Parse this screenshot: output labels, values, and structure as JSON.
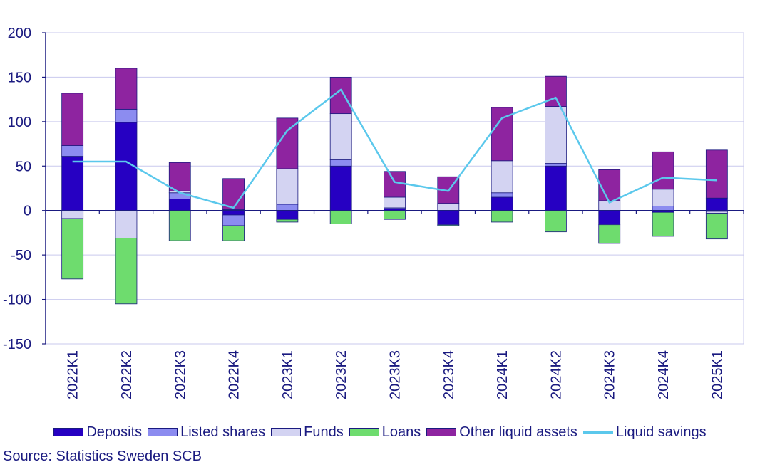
{
  "chart_data": {
    "type": "bar",
    "stacked": true,
    "categories": [
      "2022K1",
      "2022K2",
      "2022K3",
      "2022K4",
      "2023K1",
      "2023K2",
      "2023K3",
      "2023K4",
      "2024K1",
      "2024K2",
      "2024K3",
      "2024K4",
      "2025K1"
    ],
    "ylim": [
      -150,
      200
    ],
    "yticks": [
      200,
      150,
      100,
      50,
      0,
      -50,
      -100,
      -150
    ],
    "ytick_labels": [
      "200",
      "150",
      "100",
      "50",
      "0",
      "-50",
      "-100",
      "-150"
    ],
    "series": [
      {
        "name": "Deposits",
        "color": "#2600c2",
        "values": [
          61,
          99,
          13,
          -5,
          -10,
          50,
          2,
          -15,
          15,
          50,
          -15,
          -2,
          14
        ]
      },
      {
        "name": "Listed shares",
        "color": "#8c8cf0",
        "values": [
          12,
          15,
          7,
          -12,
          7,
          7,
          1,
          -1,
          5,
          3,
          -1,
          5,
          -1
        ]
      },
      {
        "name": "Funds",
        "color": "#d3d3f2",
        "values": [
          -9,
          -31,
          2,
          1,
          40,
          52,
          12,
          8,
          36,
          64,
          11,
          19,
          -2
        ]
      },
      {
        "name": "Loans",
        "color": "#6edc6e",
        "values": [
          -68,
          -74,
          -34,
          -17,
          -3,
          -15,
          -10,
          -1,
          -13,
          -24,
          -21,
          -27,
          -29
        ]
      },
      {
        "name": "Other liquid assets",
        "color": "#8e24a0",
        "values": [
          59,
          46,
          32,
          35,
          57,
          41,
          29,
          30,
          60,
          34,
          35,
          42,
          54
        ]
      }
    ],
    "line": {
      "name": "Liquid savings",
      "color": "#5bc8ec",
      "values": [
        55,
        55,
        20,
        3,
        90,
        136,
        32,
        22,
        104,
        127,
        9,
        37,
        34
      ]
    },
    "legend": [
      "Deposits",
      "Listed shares",
      "Funds",
      "Loans",
      "Other liquid assets",
      "Liquid savings"
    ],
    "legend_position": "bottom",
    "grid": true
  },
  "source": "Source: Statistics Sweden SCB"
}
